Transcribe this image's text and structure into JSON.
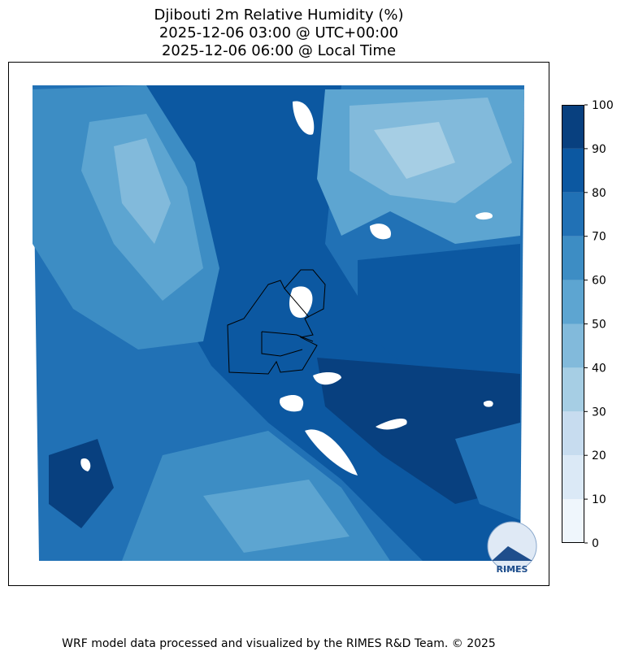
{
  "title": [
    "Djibouti 2m Relative Humidity (%)",
    "2025-12-06 03:00 @ UTC+00:00",
    "2025-12-06 06:00 @ Local Time"
  ],
  "colorbar": {
    "lim": [
      0,
      100
    ],
    "ticks": [
      0,
      10,
      20,
      30,
      40,
      50,
      60,
      70,
      80,
      90,
      100
    ],
    "colors": [
      "#eff6fc",
      "#dbe9f6",
      "#c7dcef",
      "#a6cee4",
      "#82badb",
      "#5da5d1",
      "#3d8dc4",
      "#2171b5",
      "#0c58a1",
      "#08407f"
    ]
  },
  "logo": "RIMES",
  "footer": "WRF model data processed and visualized by the RIMES R&D Team. © 2025"
}
